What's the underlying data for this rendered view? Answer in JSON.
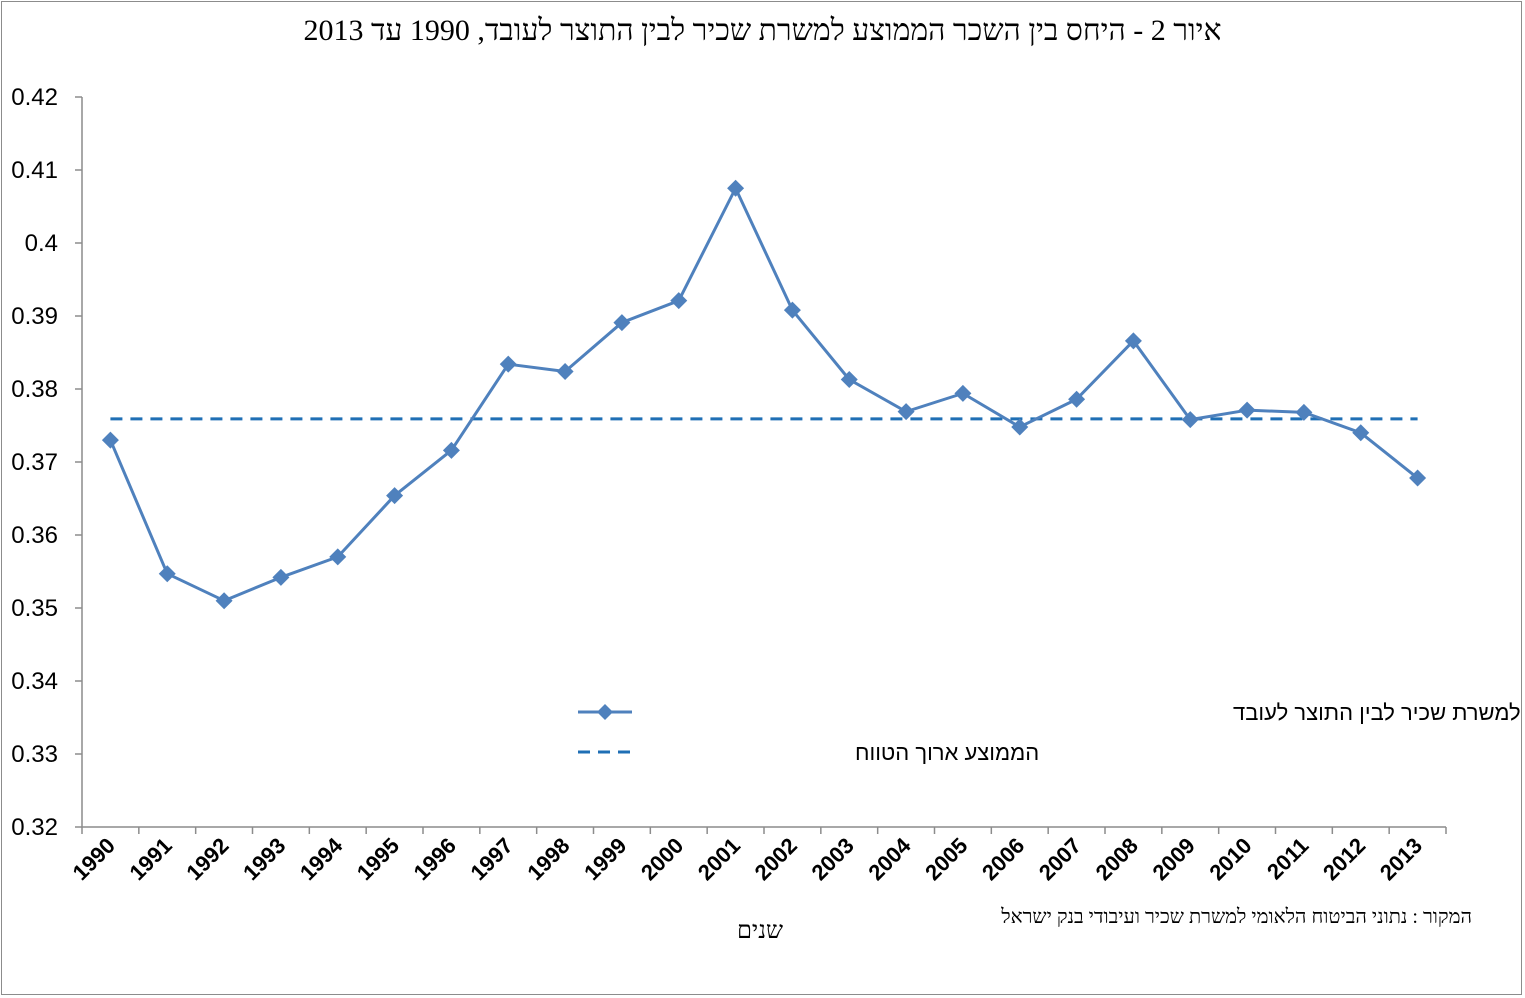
{
  "chart_data": {
    "type": "line",
    "title": "איור 2 - היחס בין השכר הממוצע למשרת שכיר לבין התוצר לעובד, 1990 עד 2013",
    "xlabel": "שנים",
    "ylabel": "",
    "ylim": [
      0.32,
      0.42
    ],
    "yticks": [
      "0.32",
      "0.33",
      "0.34",
      "0.35",
      "0.36",
      "0.37",
      "0.38",
      "0.39",
      "0.4",
      "0.41",
      "0.42"
    ],
    "categories": [
      "1990",
      "1991",
      "1992",
      "1993",
      "1994",
      "1995",
      "1996",
      "1997",
      "1998",
      "1999",
      "2000",
      "2001",
      "2002",
      "2003",
      "2004",
      "2005",
      "2006",
      "2007",
      "2008",
      "2009",
      "2010",
      "2011",
      "2012",
      "2013"
    ],
    "series": [
      {
        "name": "היחס בין השכר הממוצע למשרת שכיר לבין התוצר לעובד",
        "style": "solid-diamond",
        "color": "#4f81bd",
        "values": [
          0.373,
          0.3547,
          0.351,
          0.3542,
          0.357,
          0.3654,
          0.3716,
          0.3834,
          0.3824,
          0.3891,
          0.3921,
          0.4075,
          0.3908,
          0.3813,
          0.3769,
          0.3794,
          0.3748,
          0.3786,
          0.3866,
          0.3758,
          0.3771,
          0.3768,
          0.374,
          0.3678
        ]
      },
      {
        "name": "הממוצע ארוך הטווח",
        "style": "dashed",
        "color": "#1f6fb5",
        "values": [
          0.3759,
          0.3759,
          0.3759,
          0.3759,
          0.3759,
          0.3759,
          0.3759,
          0.3759,
          0.3759,
          0.3759,
          0.3759,
          0.3759,
          0.3759,
          0.3759,
          0.3759,
          0.3759,
          0.3759,
          0.3759,
          0.3759,
          0.3759,
          0.3759,
          0.3759,
          0.3759,
          0.3759
        ]
      }
    ],
    "legend_position": "inside-bottom-center",
    "grid": false
  },
  "source_note": "המקור : נתוני הביטוח הלאומי למשרת שכיר ועיבודי בנק ישראל"
}
